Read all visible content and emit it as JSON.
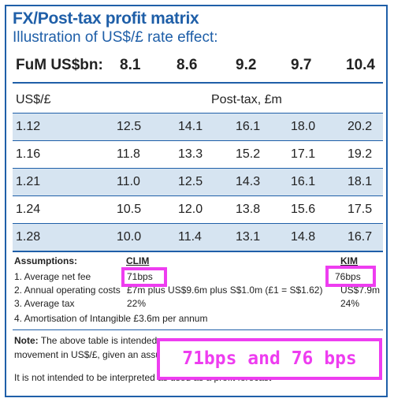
{
  "title": "FX/Post-tax profit matrix",
  "subtitle": "Illustration of US$/£ rate effect:",
  "fum": {
    "label": "FuM US$bn:",
    "values": [
      "8.1",
      "8.6",
      "9.2",
      "9.7",
      "10.4"
    ]
  },
  "table": {
    "rate_header": "US$/£",
    "value_header": "Post-tax, £m",
    "rows": [
      {
        "rate": "1.12",
        "values": [
          "12.5",
          "14.1",
          "16.1",
          "18.0",
          "20.2"
        ]
      },
      {
        "rate": "1.16",
        "values": [
          "11.8",
          "13.3",
          "15.2",
          "17.1",
          "19.2"
        ]
      },
      {
        "rate": "1.21",
        "values": [
          "11.0",
          "12.5",
          "14.3",
          "16.1",
          "18.1"
        ]
      },
      {
        "rate": "1.24",
        "values": [
          "10.5",
          "12.0",
          "13.8",
          "15.6",
          "17.5"
        ]
      },
      {
        "rate": "1.28",
        "values": [
          "10.0",
          "11.4",
          "13.1",
          "14.8",
          "16.7"
        ]
      }
    ]
  },
  "assumptions": {
    "heading": "Assumptions:",
    "col_clim": "CLIM",
    "col_kim": "KIM",
    "items": [
      {
        "label": "1. Average net fee",
        "clim": "71bps",
        "kim": "76bps"
      },
      {
        "label": "2. Annual operating costs",
        "clim": "£7m plus US$9.6m plus S$1.0m (£1 = S$1.62)",
        "kim": "US$7.9m"
      },
      {
        "label": "3. Average tax",
        "clim": "22%",
        "kim": "24%"
      },
      {
        "label": "4. Amortisation of Intangible £3.6m per annum"
      }
    ]
  },
  "note": {
    "label": "Note:",
    "line1": "The above table is intended",
    "line2": "movement in US$/£, given an assu",
    "line3": "It is not intended to be interpreted as used as a profit forecast"
  },
  "annotation": "71bps and 76 bps",
  "colors": {
    "brand_blue": "#1f5fa8",
    "row_shade": "#d6e4f1",
    "highlight": "#ee3df0"
  }
}
